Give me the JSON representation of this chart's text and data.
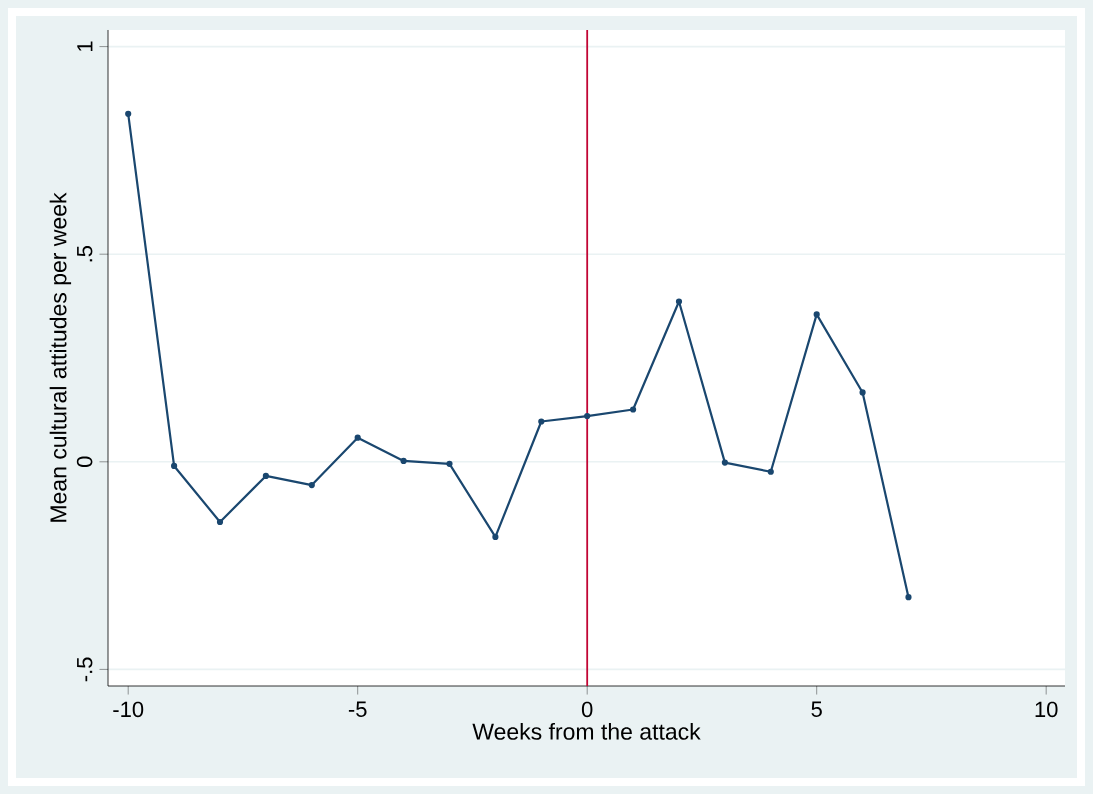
{
  "chart_data": {
    "type": "line",
    "xlabel": "Weeks from the attack",
    "ylabel": "Mean cultural attitudes per week",
    "x": [
      -10,
      -9,
      -8,
      -7,
      -6,
      -5,
      -4,
      -3,
      -2,
      -1,
      0,
      1,
      2,
      3,
      4,
      5,
      6,
      7
    ],
    "series": [
      {
        "color": "#1a476f",
        "values": [
          0.838,
          -0.01,
          -0.145,
          -0.034,
          -0.056,
          0.058,
          0.002,
          -0.005,
          -0.181,
          0.097,
          0.11,
          0.126,
          0.386,
          -0.002,
          -0.024,
          0.355,
          0.167,
          -0.326
        ]
      }
    ],
    "xlim": [
      -10.44,
      10.41
    ],
    "ylim": [
      -0.54,
      1.04
    ],
    "xticks": [
      -10,
      -5,
      0,
      5,
      10
    ],
    "yticks": [
      {
        "value": -0.5,
        "label": "-.5"
      },
      {
        "value": 0,
        "label": "0"
      },
      {
        "value": 0.5,
        "label": ".5"
      },
      {
        "value": 1,
        "label": "1"
      }
    ],
    "grid": "y",
    "marker": "circle",
    "line_style": "solid",
    "ref_lines": [
      {
        "axis": "x",
        "value": 0,
        "color": "#c10534"
      }
    ]
  }
}
